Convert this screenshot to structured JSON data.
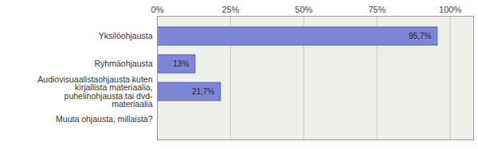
{
  "chart_data": {
    "type": "bar",
    "orientation": "horizontal",
    "categories": [
      "Yksilöohjausta",
      "Ryhmäohjausta",
      "Audiovisuaalistaohjausta kuten kirjallista materiaalia, puhelinohjausta tai dvd- materiaalia",
      "Muuta ohjausta, millaista?"
    ],
    "values": [
      95.7,
      13,
      21.7,
      null
    ],
    "value_labels": [
      "95,7%",
      "13%",
      "21,7%",
      null
    ],
    "data_labels": true,
    "color": "#7d87d6",
    "xlim": [
      0,
      108
    ],
    "xticks": [
      {
        "value": 0,
        "label": "0%"
      },
      {
        "value": 25,
        "label": "25%"
      },
      {
        "value": 50,
        "label": "50%"
      },
      {
        "value": 75,
        "label": "75%"
      },
      {
        "value": 100,
        "label": "100%"
      }
    ],
    "grid": true
  }
}
